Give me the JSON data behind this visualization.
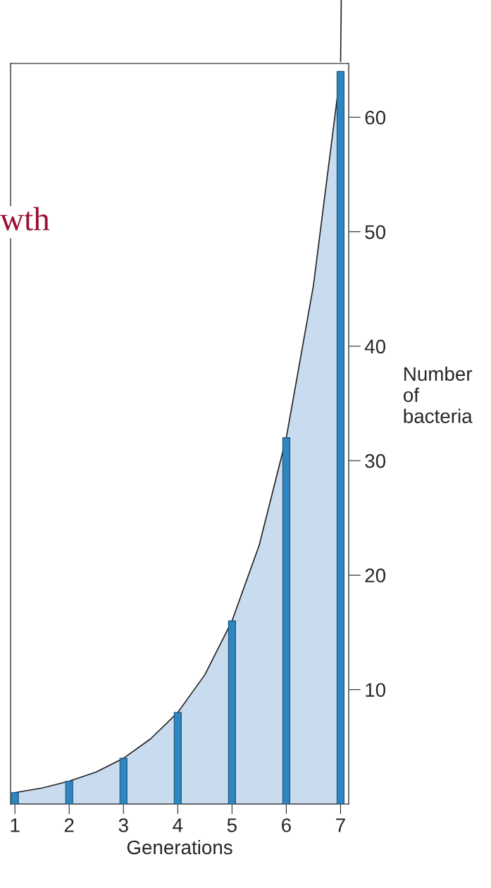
{
  "chart_data": {
    "type": "bar",
    "x": [
      1,
      2,
      3,
      4,
      5,
      6,
      7
    ],
    "series": [
      {
        "type": "area",
        "color": "#c9dcef",
        "x": [
          1,
          1.5,
          2,
          2.5,
          3,
          3.5,
          4,
          4.5,
          5,
          5.5,
          6,
          6.5,
          7
        ],
        "values": [
          1,
          1.4,
          2,
          2.8,
          4,
          5.7,
          8,
          11.3,
          16,
          22.6,
          32,
          45.3,
          64
        ]
      },
      {
        "color": "#2e86c1",
        "values": [
          1,
          2,
          4,
          8,
          16,
          32,
          64
        ]
      }
    ],
    "xlabel": "Generations",
    "ylabel": "Number\nof\nbacteria",
    "xlim": [
      0.92,
      7.15
    ],
    "ylim": [
      0,
      64.7
    ],
    "xticks": [
      1,
      2,
      3,
      4,
      5,
      6,
      7
    ],
    "yticks": [
      10,
      20,
      30,
      40,
      50,
      60
    ],
    "annotations": [
      "wth"
    ],
    "grid": false,
    "legend": false
  }
}
